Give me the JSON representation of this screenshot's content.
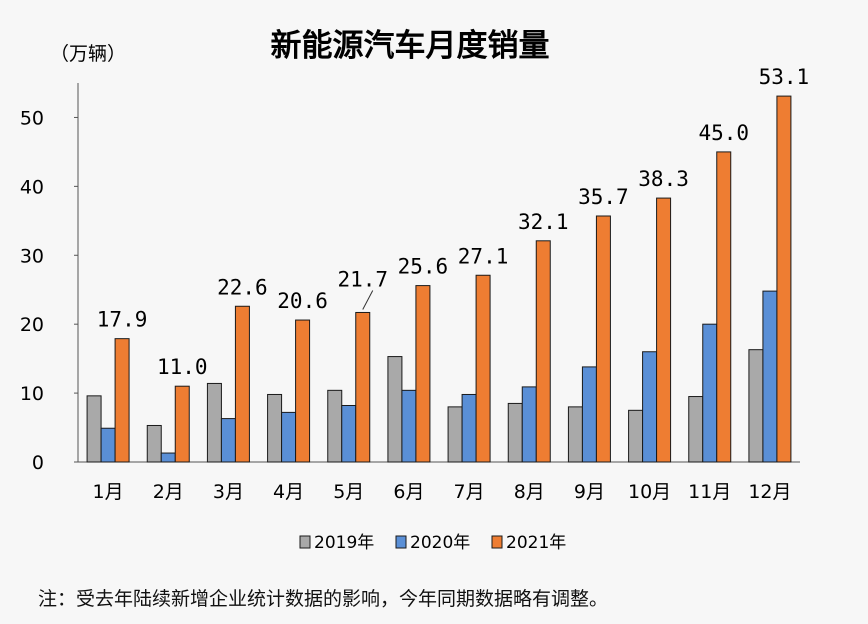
{
  "chart_data": {
    "type": "bar",
    "title": "新能源汽车月度销量",
    "ylabel": "（万辆）",
    "xlabel": "",
    "ylim": [
      0,
      55
    ],
    "yticks": [
      "0",
      "10",
      "20",
      "30",
      "40",
      "50"
    ],
    "categories": [
      "1月",
      "2月",
      "3月",
      "4月",
      "5月",
      "6月",
      "7月",
      "8月",
      "9月",
      "10月",
      "11月",
      "12月"
    ],
    "series": [
      {
        "name": "2019年",
        "color": "#a9a9a9",
        "values": [
          9.6,
          5.3,
          11.4,
          9.8,
          10.4,
          15.3,
          8.0,
          8.5,
          8.0,
          7.5,
          9.5,
          16.3
        ]
      },
      {
        "name": "2020年",
        "color": "#5a8fd6",
        "values": [
          4.9,
          1.3,
          6.3,
          7.2,
          8.2,
          10.4,
          9.8,
          10.9,
          13.8,
          16.0,
          20.0,
          24.8
        ]
      },
      {
        "name": "2021年",
        "color": "#ee7d32",
        "values": [
          17.9,
          11.0,
          22.6,
          20.6,
          21.7,
          25.6,
          27.1,
          32.1,
          35.7,
          38.3,
          45.0,
          53.1
        ]
      }
    ],
    "data_labels": [
      "17.9",
      "11.0",
      "22.6",
      "20.6",
      "21.7",
      "25.6",
      "27.1",
      "32.1",
      "35.7",
      "38.3",
      "45.0",
      "53.1"
    ],
    "legend_position": "bottom",
    "grid": false
  },
  "note": "注：受去年陆续新增企业统计数据的影响，今年同期数据略有调整。"
}
